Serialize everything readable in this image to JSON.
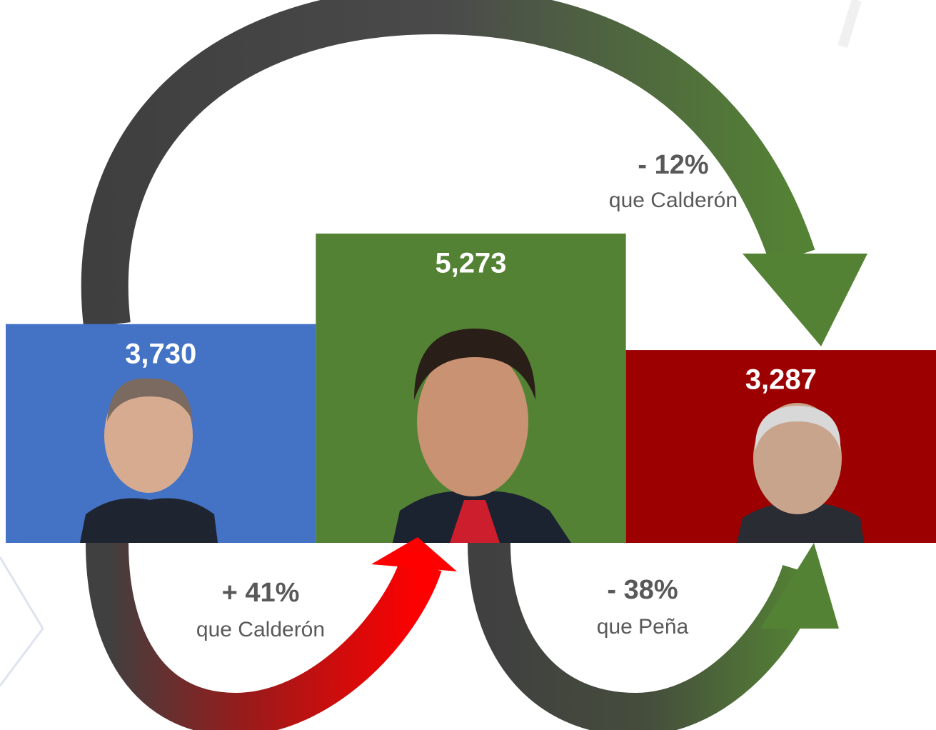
{
  "chart_data": {
    "type": "bar",
    "categories": [
      null,
      null,
      null
    ],
    "values": [
      3730,
      5273,
      3287
    ],
    "value_labels": [
      "3,730",
      "5,273",
      "3,287"
    ],
    "colors": [
      "#4472c4",
      "#548235",
      "#9c0000"
    ],
    "annotations": [
      {
        "change": "- 12%",
        "label": "que Calderón"
      },
      {
        "change": "+ 41%",
        "label": "que Calderón"
      },
      {
        "change": "- 38%",
        "label": "que Peña"
      }
    ]
  }
}
